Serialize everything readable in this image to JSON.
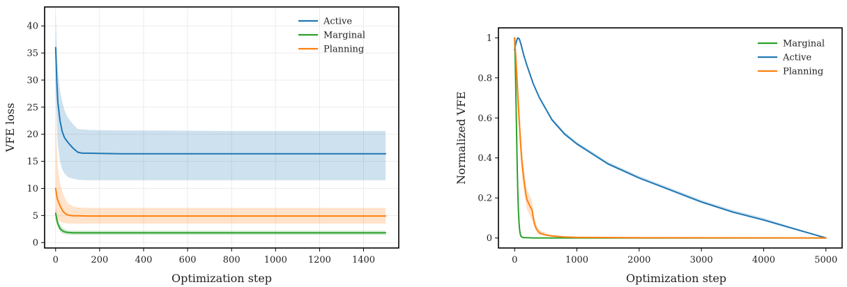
{
  "colors": {
    "active": "#1f77b4",
    "marginal": "#2ca02c",
    "planning": "#ff7f0e"
  },
  "chart_data": [
    {
      "type": "line",
      "title": "",
      "xlabel": "Optimization step",
      "ylabel": "VFE loss",
      "xlim": [
        -50,
        1560
      ],
      "ylim": [
        -1,
        43.5
      ],
      "grid": true,
      "legend_placement": "top-right",
      "xticks": [
        0,
        200,
        400,
        600,
        800,
        1000,
        1200,
        1400
      ],
      "yticks": [
        0,
        5,
        10,
        15,
        20,
        25,
        30,
        35,
        40
      ],
      "series": [
        {
          "name": "Active",
          "color_key": "active",
          "x": [
            0,
            5,
            10,
            20,
            30,
            40,
            50,
            60,
            80,
            100,
            120,
            150,
            200,
            300,
            500,
            800,
            1000,
            1200,
            1500
          ],
          "values": [
            36,
            30,
            26,
            22.5,
            20.5,
            19.4,
            18.8,
            18.3,
            17.4,
            16.7,
            16.5,
            16.5,
            16.45,
            16.4,
            16.4,
            16.4,
            16.4,
            16.4,
            16.4
          ],
          "lower": [
            28,
            22,
            18,
            15,
            13.5,
            12.8,
            12.3,
            12,
            11.8,
            11.6,
            11.55,
            11.5,
            11.5,
            11.5,
            11.5,
            11.5,
            11.5,
            11.5,
            11.5
          ],
          "upper": [
            42.5,
            36,
            32,
            28,
            26,
            24.5,
            23.5,
            22.8,
            21.8,
            21,
            20.9,
            20.8,
            20.75,
            20.7,
            20.7,
            20.6,
            20.6,
            20.6,
            20.6
          ]
        },
        {
          "name": "Marginal",
          "color_key": "marginal",
          "x": [
            0,
            5,
            10,
            20,
            30,
            40,
            50,
            60,
            80,
            100,
            150,
            200,
            500,
            1000,
            1500
          ],
          "values": [
            5.4,
            4.3,
            3.5,
            2.6,
            2.2,
            2.0,
            1.9,
            1.85,
            1.8,
            1.8,
            1.8,
            1.8,
            1.8,
            1.8,
            1.8
          ],
          "lower": [
            4.2,
            3.4,
            2.8,
            2.0,
            1.7,
            1.55,
            1.5,
            1.45,
            1.4,
            1.4,
            1.4,
            1.4,
            1.4,
            1.4,
            1.4
          ],
          "upper": [
            6.6,
            5.3,
            4.4,
            3.3,
            2.8,
            2.5,
            2.35,
            2.25,
            2.2,
            2.2,
            2.2,
            2.2,
            2.2,
            2.2,
            2.2
          ]
        },
        {
          "name": "Planning",
          "color_key": "planning",
          "x": [
            0,
            5,
            10,
            20,
            30,
            40,
            50,
            60,
            80,
            100,
            150,
            200,
            500,
            1000,
            1500
          ],
          "values": [
            10,
            8.6,
            7.8,
            6.8,
            6.0,
            5.5,
            5.2,
            5.05,
            4.95,
            4.95,
            4.9,
            4.9,
            4.9,
            4.9,
            4.9
          ],
          "lower": [
            5,
            4.5,
            4.2,
            3.9,
            3.7,
            3.6,
            3.55,
            3.5,
            3.5,
            3.5,
            3.5,
            3.5,
            3.5,
            3.5,
            3.5
          ],
          "upper": [
            24,
            18,
            14,
            11,
            9.5,
            8.4,
            7.6,
            7.1,
            6.7,
            6.5,
            6.4,
            6.4,
            6.4,
            6.4,
            6.4
          ]
        }
      ]
    },
    {
      "type": "line",
      "title": "",
      "xlabel": "Optimization step",
      "ylabel": "Normalized VFE",
      "xlim": [
        -260,
        5260
      ],
      "ylim": [
        -0.05,
        1.05
      ],
      "grid": false,
      "legend_placement": "top-right",
      "xticks": [
        0,
        1000,
        2000,
        3000,
        4000,
        5000
      ],
      "yticks": [
        0.0,
        0.2,
        0.4,
        0.6,
        0.8,
        1.0
      ],
      "series": [
        {
          "name": "Marginal",
          "color_key": "marginal",
          "x": [
            0,
            10,
            20,
            30,
            40,
            50,
            60,
            70,
            80,
            90,
            100,
            120,
            150,
            200,
            300,
            500,
            1000,
            5000
          ],
          "values": [
            1.0,
            0.88,
            0.72,
            0.55,
            0.38,
            0.24,
            0.14,
            0.08,
            0.04,
            0.02,
            0.01,
            0.004,
            0.002,
            0.001,
            0,
            0,
            0,
            0
          ],
          "lower": [
            1.0,
            0.85,
            0.68,
            0.5,
            0.33,
            0.2,
            0.11,
            0.06,
            0.03,
            0.015,
            0.008,
            0.003,
            0.001,
            0,
            0,
            0,
            0,
            0
          ],
          "upper": [
            1.0,
            0.9,
            0.75,
            0.58,
            0.42,
            0.28,
            0.18,
            0.1,
            0.06,
            0.03,
            0.015,
            0.006,
            0.003,
            0.002,
            0.001,
            0,
            0,
            0
          ]
        },
        {
          "name": "Active",
          "color_key": "active",
          "x": [
            0,
            25,
            50,
            75,
            100,
            150,
            200,
            300,
            400,
            600,
            800,
            1000,
            1500,
            2000,
            2500,
            3000,
            3500,
            4000,
            4500,
            5000
          ],
          "values": [
            0.94,
            0.98,
            1.0,
            0.995,
            0.97,
            0.91,
            0.86,
            0.77,
            0.7,
            0.59,
            0.52,
            0.47,
            0.37,
            0.3,
            0.24,
            0.18,
            0.13,
            0.09,
            0.045,
            0.0
          ],
          "lower": [
            0.94,
            0.98,
            1.0,
            0.99,
            0.965,
            0.905,
            0.855,
            0.765,
            0.695,
            0.585,
            0.515,
            0.465,
            0.365,
            0.295,
            0.235,
            0.175,
            0.125,
            0.085,
            0.04,
            0.0
          ],
          "upper": [
            0.94,
            0.98,
            1.0,
            1.0,
            0.975,
            0.915,
            0.865,
            0.775,
            0.705,
            0.6,
            0.53,
            0.48,
            0.38,
            0.31,
            0.25,
            0.19,
            0.14,
            0.1,
            0.05,
            0.0
          ]
        },
        {
          "name": "Planning",
          "color_key": "planning",
          "x": [
            0,
            20,
            40,
            60,
            80,
            100,
            120,
            150,
            180,
            200,
            230,
            260,
            280,
            300,
            320,
            350,
            400,
            500,
            600,
            800,
            1000,
            2000,
            5000
          ],
          "values": [
            1.0,
            0.9,
            0.78,
            0.66,
            0.55,
            0.45,
            0.37,
            0.29,
            0.22,
            0.19,
            0.17,
            0.15,
            0.14,
            0.1,
            0.07,
            0.045,
            0.025,
            0.015,
            0.01,
            0.005,
            0.003,
            0.001,
            0.0
          ],
          "lower": [
            1.0,
            0.85,
            0.7,
            0.58,
            0.47,
            0.38,
            0.3,
            0.23,
            0.17,
            0.14,
            0.12,
            0.1,
            0.09,
            0.07,
            0.05,
            0.03,
            0.015,
            0.01,
            0.006,
            0.003,
            0.002,
            0.0,
            0.0
          ],
          "upper": [
            1.0,
            0.94,
            0.86,
            0.75,
            0.64,
            0.53,
            0.44,
            0.35,
            0.27,
            0.24,
            0.22,
            0.2,
            0.19,
            0.14,
            0.1,
            0.065,
            0.04,
            0.025,
            0.015,
            0.008,
            0.005,
            0.002,
            0.0
          ]
        }
      ]
    }
  ]
}
